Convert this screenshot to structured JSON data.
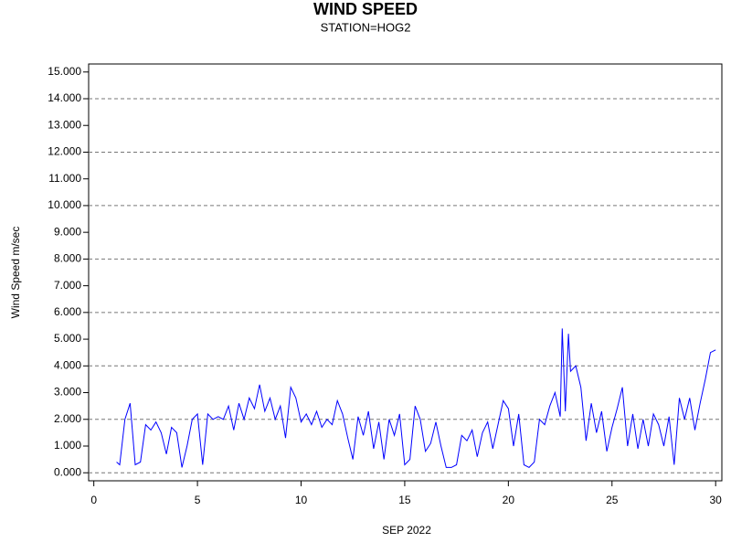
{
  "chart_data": {
    "type": "line",
    "title": "WIND SPEED",
    "subtitle": "STATION=HOG2",
    "xlabel": "SEP 2022",
    "ylabel": "Wind Speed m/sec",
    "xlim": [
      -0.25,
      30.3
    ],
    "ylim": [
      -0.3,
      15.3
    ],
    "xticks": [
      0,
      5,
      10,
      15,
      20,
      25,
      30
    ],
    "yticks": [
      {
        "value": 0,
        "label": "0.000"
      },
      {
        "value": 1,
        "label": "1.000"
      },
      {
        "value": 2,
        "label": "2.000"
      },
      {
        "value": 3,
        "label": "3.000"
      },
      {
        "value": 4,
        "label": "4.000"
      },
      {
        "value": 5,
        "label": "5.000"
      },
      {
        "value": 6,
        "label": "6.000"
      },
      {
        "value": 7,
        "label": "7.000"
      },
      {
        "value": 8,
        "label": "8.000"
      },
      {
        "value": 9,
        "label": "9.000"
      },
      {
        "value": 10,
        "label": "10.000"
      },
      {
        "value": 11,
        "label": "11.000"
      },
      {
        "value": 12,
        "label": "12.000"
      },
      {
        "value": 13,
        "label": "13.000"
      },
      {
        "value": 14,
        "label": "14.000"
      },
      {
        "value": 15,
        "label": "15.000"
      }
    ],
    "ygrid": [
      0,
      2,
      4,
      6,
      8,
      10,
      12,
      14
    ],
    "color": "#0000ff",
    "x": [
      1.1,
      1.25,
      1.5,
      1.75,
      2.0,
      2.25,
      2.5,
      2.75,
      3.0,
      3.25,
      3.5,
      3.75,
      4.0,
      4.25,
      4.5,
      4.75,
      5.0,
      5.25,
      5.5,
      5.75,
      6.0,
      6.25,
      6.5,
      6.75,
      7.0,
      7.25,
      7.5,
      7.75,
      8.0,
      8.25,
      8.5,
      8.75,
      9.0,
      9.25,
      9.5,
      9.75,
      10.0,
      10.25,
      10.5,
      10.75,
      11.0,
      11.25,
      11.5,
      11.75,
      12.0,
      12.25,
      12.5,
      12.75,
      13.0,
      13.25,
      13.5,
      13.75,
      14.0,
      14.25,
      14.5,
      14.75,
      15.0,
      15.25,
      15.5,
      15.75,
      16.0,
      16.25,
      16.5,
      16.75,
      17.0,
      17.25,
      17.5,
      17.75,
      18.0,
      18.25,
      18.5,
      18.75,
      19.0,
      19.25,
      19.5,
      19.75,
      20.0,
      20.25,
      20.5,
      20.75,
      21.0,
      21.25,
      21.5,
      21.75,
      22.0,
      22.25,
      22.5,
      22.6,
      22.75,
      22.9,
      23.0,
      23.25,
      23.5,
      23.75,
      24.0,
      24.25,
      24.5,
      24.75,
      25.0,
      25.25,
      25.5,
      25.75,
      26.0,
      26.25,
      26.5,
      26.75,
      27.0,
      27.25,
      27.5,
      27.75,
      28.0,
      28.25,
      28.5,
      28.75,
      29.0,
      29.25,
      29.5,
      29.75,
      30.0
    ],
    "values": [
      0.4,
      0.3,
      2.0,
      2.6,
      0.3,
      0.4,
      1.8,
      1.6,
      1.9,
      1.5,
      0.7,
      1.7,
      1.5,
      0.2,
      1.0,
      2.0,
      2.2,
      0.3,
      2.2,
      2.0,
      2.1,
      2.0,
      2.5,
      1.6,
      2.6,
      2.0,
      2.8,
      2.4,
      3.3,
      2.3,
      2.8,
      2.0,
      2.5,
      1.3,
      3.2,
      2.8,
      1.9,
      2.2,
      1.8,
      2.3,
      1.7,
      2.0,
      1.8,
      2.7,
      2.2,
      1.3,
      0.5,
      2.1,
      1.4,
      2.3,
      0.9,
      1.9,
      0.5,
      2.0,
      1.4,
      2.2,
      0.3,
      0.5,
      2.5,
      2.0,
      0.8,
      1.1,
      1.9,
      1.0,
      0.2,
      0.2,
      0.3,
      1.4,
      1.2,
      1.6,
      0.6,
      1.5,
      1.9,
      0.9,
      1.8,
      2.7,
      2.4,
      1.0,
      2.2,
      0.3,
      0.2,
      0.4,
      2.0,
      1.8,
      2.5,
      3.0,
      2.1,
      5.4,
      2.3,
      5.2,
      3.8,
      4.0,
      3.2,
      1.2,
      2.6,
      1.5,
      2.3,
      0.8,
      1.7,
      2.4,
      3.2,
      1.0,
      2.2,
      0.9,
      2.0,
      1.0,
      2.2,
      1.8,
      1.0,
      2.1,
      0.3,
      2.8,
      2.0,
      2.8,
      1.6,
      2.6,
      3.5,
      4.5,
      4.6
    ]
  }
}
